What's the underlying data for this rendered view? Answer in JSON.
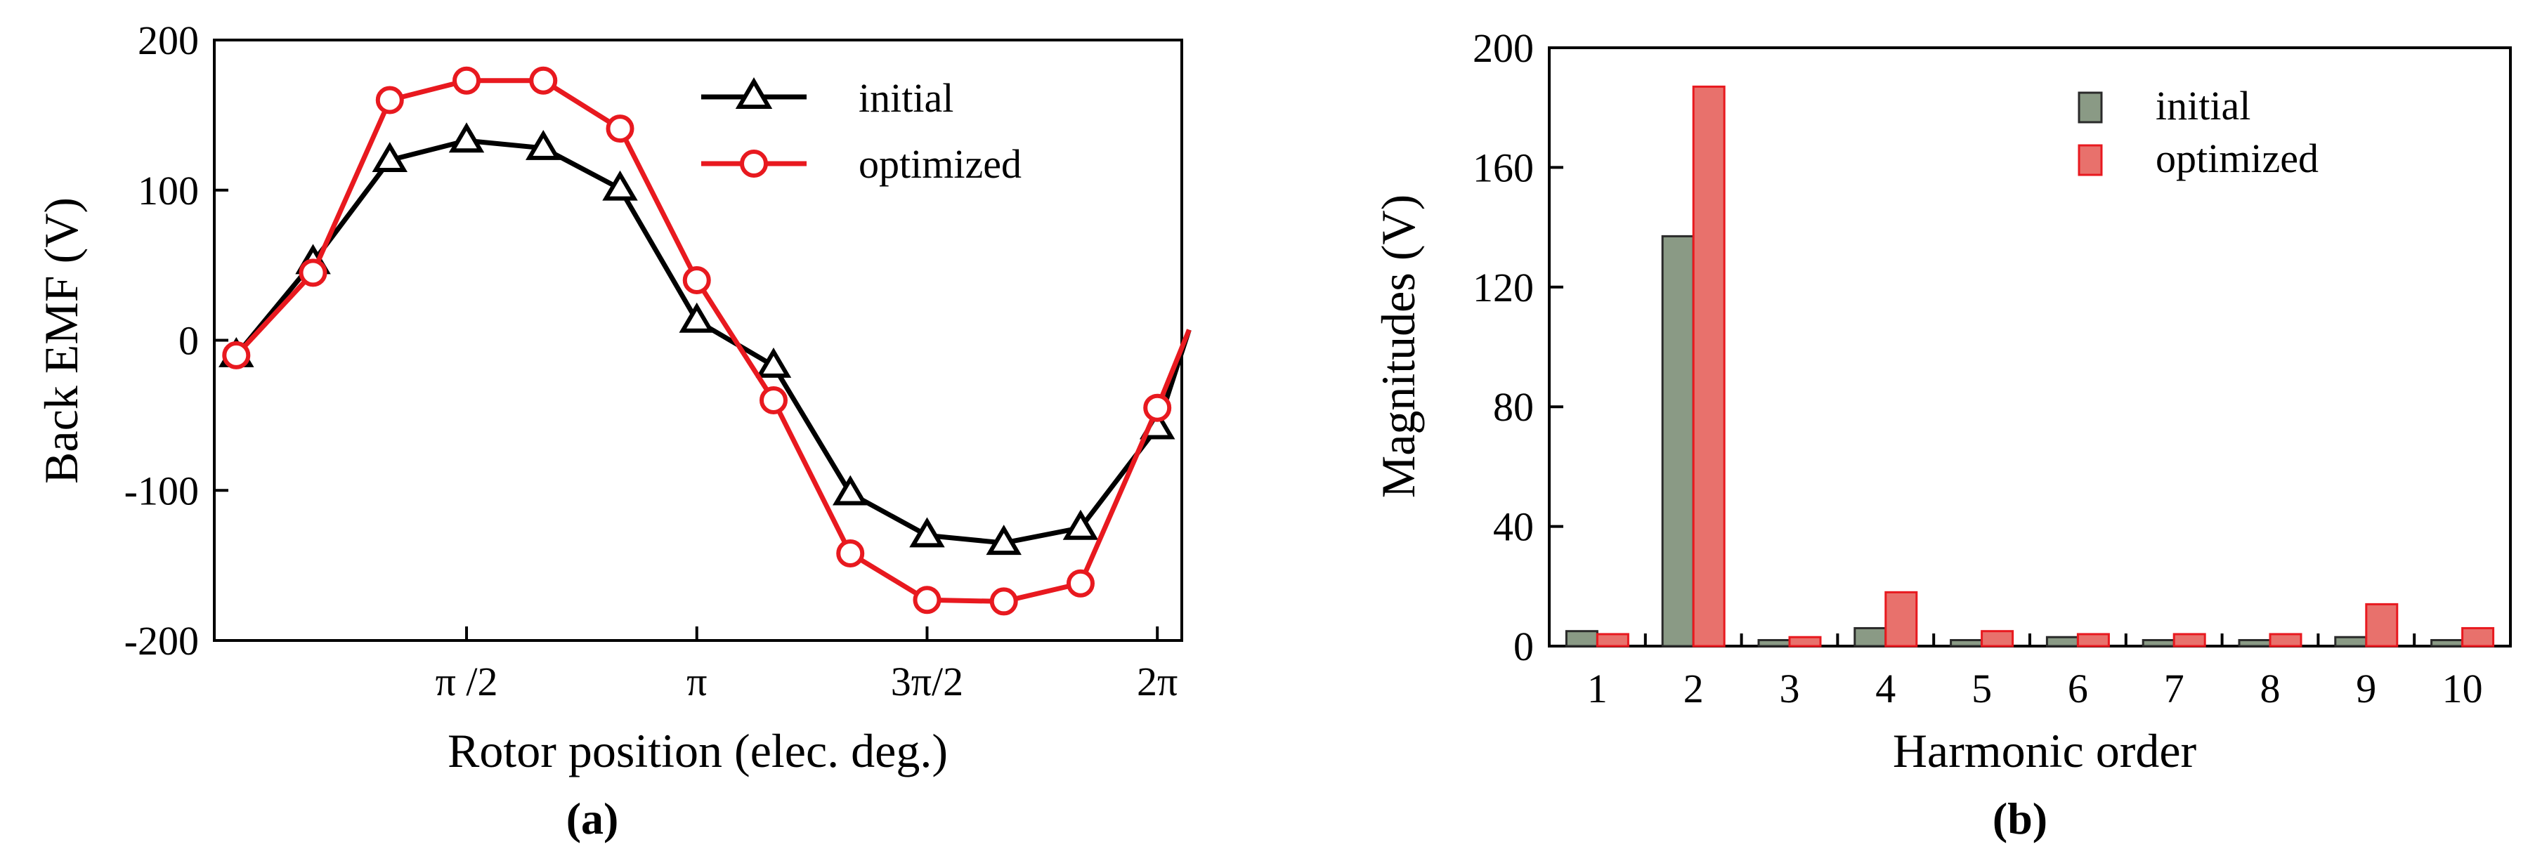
{
  "chart_data": [
    {
      "type": "line",
      "panel_label": "(a)",
      "xlabel": "Rotor position (elec. deg.)",
      "ylabel": "Back EMF (V)",
      "ylim": [
        -200,
        200
      ],
      "xlim": [
        -0.15,
        6.45
      ],
      "yticks": [
        -200,
        -100,
        0,
        100,
        200
      ],
      "ytick_labels": [
        "-200",
        "-100",
        "0",
        "100",
        "200"
      ],
      "xticks": [
        1.5708,
        3.1416,
        4.7124,
        6.2832
      ],
      "xtick_labels": [
        "π /2",
        "π",
        "3π/2",
        "2π"
      ],
      "legend_position": "top-right",
      "series": [
        {
          "name": "initial",
          "color": "#000000",
          "marker": "triangle",
          "x": [
            0.0,
            0.5236,
            1.0472,
            1.5708,
            2.0944,
            2.618,
            3.1416,
            3.6652,
            4.1888,
            4.7124,
            5.236,
            5.7596,
            6.2832
          ],
          "y": [
            -10,
            52,
            120,
            133,
            128,
            101,
            13,
            -17,
            -102,
            -130,
            -135,
            -125,
            -58
          ]
        },
        {
          "name": "optimized",
          "color": "#e8191f",
          "marker": "circle",
          "x": [
            0.0,
            0.5236,
            1.0472,
            1.5708,
            2.0944,
            2.618,
            3.1416,
            3.6652,
            4.1888,
            4.7124,
            5.236,
            5.7596,
            6.2832
          ],
          "y": [
            -10,
            45,
            160,
            173,
            173,
            141,
            40,
            -40,
            -142,
            -173,
            -174,
            -162,
            -45
          ]
        }
      ],
      "end_point": {
        "x": 6.5,
        "y": 7
      }
    },
    {
      "type": "bar",
      "panel_label": "(b)",
      "xlabel": "Harmonic order",
      "ylabel": "Magnitudes (V)",
      "ylim": [
        0,
        200
      ],
      "yticks": [
        0,
        40,
        80,
        120,
        160,
        200
      ],
      "ytick_labels": [
        "0",
        "40",
        "80",
        "120",
        "160",
        "200"
      ],
      "categories": [
        "1",
        "2",
        "3",
        "4",
        "5",
        "6",
        "7",
        "8",
        "9",
        "10"
      ],
      "legend_position": "top-right",
      "series": [
        {
          "name": "initial",
          "color": "#8a9a85",
          "edge": "#2a2a2a",
          "values": [
            5,
            137,
            2,
            6,
            2,
            3,
            2,
            2,
            3,
            2
          ]
        },
        {
          "name": "optimized",
          "color": "#e8716c",
          "edge": "#e8191f",
          "values": [
            4,
            187,
            3,
            18,
            5,
            4,
            4,
            4,
            14,
            6
          ]
        }
      ]
    }
  ]
}
